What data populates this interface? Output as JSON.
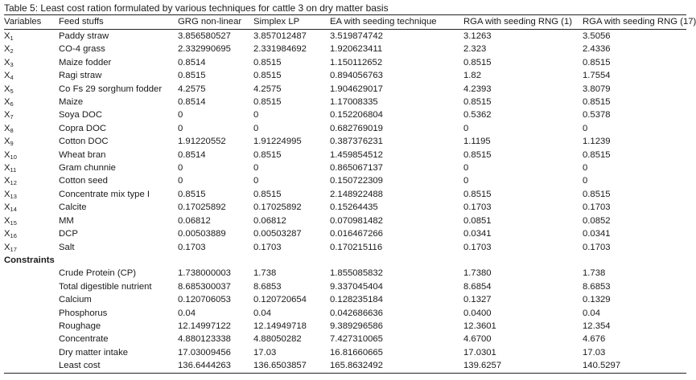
{
  "caption": "Table 5: Least cost ration formulated by various techniques for cattle 3 on dry matter basis",
  "headers": [
    "Variables",
    "Feed stuffs",
    "GRG non-linear",
    "Simplex LP",
    "EA with seeding technique",
    "RGA with seeding RNG (1)",
    "RGA with seeding RNG (17)"
  ],
  "rows": [
    {
      "var": "X",
      "sub": "1",
      "feed": "Paddy straw",
      "grg": "3.856580527",
      "lp": "3.857012487",
      "ea": "3.519874742",
      "rga1": "3.1263",
      "rga17": "3.5056"
    },
    {
      "var": "X",
      "sub": "2",
      "feed": "CO-4 grass",
      "grg": "2.332990695",
      "lp": "2.331984692",
      "ea": "1.920623411",
      "rga1": "2.323",
      "rga17": "2.4336"
    },
    {
      "var": "X",
      "sub": "3",
      "feed": "Maize fodder",
      "grg": "0.8514",
      "lp": "0.8515",
      "ea": "1.150112652",
      "rga1": "0.8515",
      "rga17": "0.8515"
    },
    {
      "var": "X",
      "sub": "4",
      "feed": "Ragi straw",
      "grg": "0.8515",
      "lp": "0.8515",
      "ea": "0.894056763",
      "rga1": "1.82",
      "rga17": "1.7554"
    },
    {
      "var": "X",
      "sub": "5",
      "feed": "Co Fs 29 sorghum fodder",
      "grg": "4.2575",
      "lp": "4.2575",
      "ea": "1.904629017",
      "rga1": "4.2393",
      "rga17": "3.8079"
    },
    {
      "var": "X",
      "sub": "6",
      "feed": "Maize",
      "grg": "0.8514",
      "lp": "0.8515",
      "ea": "1.17008335",
      "rga1": "0.8515",
      "rga17": "0.8515"
    },
    {
      "var": "X",
      "sub": "7",
      "feed": "Soya DOC",
      "grg": "0",
      "lp": "0",
      "ea": "0.152206804",
      "rga1": "0.5362",
      "rga17": "0.5378"
    },
    {
      "var": "X",
      "sub": "8",
      "feed": "Copra DOC",
      "grg": "0",
      "lp": "0",
      "ea": "0.682769019",
      "rga1": "0",
      "rga17": "0"
    },
    {
      "var": "X",
      "sub": "9",
      "feed": "Cotton DOC",
      "grg": "1.91220552",
      "lp": "1.91224995",
      "ea": "0.387376231",
      "rga1": "1.1195",
      "rga17": "1.1239"
    },
    {
      "var": "X",
      "sub": "10",
      "feed": "Wheat bran",
      "grg": "0.8514",
      "lp": "0.8515",
      "ea": "1.459854512",
      "rga1": "0.8515",
      "rga17": "0.8515"
    },
    {
      "var": "X",
      "sub": "11",
      "feed": "Gram chunnie",
      "grg": "0",
      "lp": "0",
      "ea": "0.865067137",
      "rga1": "0",
      "rga17": "0"
    },
    {
      "var": "X",
      "sub": "12",
      "feed": "Cotton seed",
      "grg": "0",
      "lp": "0",
      "ea": "0.150722309",
      "rga1": "0",
      "rga17": "0"
    },
    {
      "var": "X",
      "sub": "13",
      "feed": "Concentrate mix type I",
      "grg": "0.8515",
      "lp": "0.8515",
      "ea": "2.148922488",
      "rga1": "0.8515",
      "rga17": "0.8515"
    },
    {
      "var": "X",
      "sub": "14",
      "feed": "Calcite",
      "grg": "0.17025892",
      "lp": "0.17025892",
      "ea": "0.15264435",
      "rga1": "0.1703",
      "rga17": "0.1703"
    },
    {
      "var": "X",
      "sub": "15",
      "feed": "MM",
      "grg": "0.06812",
      "lp": "0.06812",
      "ea": "0.070981482",
      "rga1": "0.0851",
      "rga17": "0.0852"
    },
    {
      "var": "X",
      "sub": "16",
      "feed": "DCP",
      "grg": "0.00503889",
      "lp": "0.00503287",
      "ea": "0.016467266",
      "rga1": "0.0341",
      "rga17": "0.0341"
    },
    {
      "var": "X",
      "sub": "17",
      "feed": "Salt",
      "grg": "0.1703",
      "lp": "0.1703",
      "ea": "0.170215116",
      "rga1": "0.1703",
      "rga17": "0.1703"
    }
  ],
  "constraints_label": "Constraints",
  "constraints": [
    {
      "feed": "Crude Protein (CP)",
      "grg": "1.738000003",
      "lp": "1.738",
      "ea": "1.855085832",
      "rga1": "1.7380",
      "rga17": "1.738"
    },
    {
      "feed": "Total digestible nutrient",
      "grg": "8.685300037",
      "lp": "8.6853",
      "ea": "9.337045404",
      "rga1": "8.6854",
      "rga17": "8.6853"
    },
    {
      "feed": "Calcium",
      "grg": "0.120706053",
      "lp": "0.120720654",
      "ea": "0.128235184",
      "rga1": "0.1327",
      "rga17": "0.1329"
    },
    {
      "feed": "Phosphorus",
      "grg": "0.04",
      "lp": "0.04",
      "ea": "0.042686636",
      "rga1": "0.0400",
      "rga17": "0.04"
    },
    {
      "feed": "Roughage",
      "grg": "12.14997122",
      "lp": "12.14949718",
      "ea": "9.389296586",
      "rga1": "12.3601",
      "rga17": "12.354"
    },
    {
      "feed": "Concentrate",
      "grg": "4.880123338",
      "lp": "4.88050282",
      "ea": "7.427310065",
      "rga1": "4.6700",
      "rga17": "4.676"
    },
    {
      "feed": "Dry matter intake",
      "grg": "17.03009456",
      "lp": "17.03",
      "ea": "16.81660665",
      "rga1": "17.0301",
      "rga17": "17.03"
    },
    {
      "feed": "Least cost",
      "grg": "136.6444263",
      "lp": "136.6503857",
      "ea": "165.8632492",
      "rga1": "139.6257",
      "rga17": "140.5297"
    }
  ]
}
